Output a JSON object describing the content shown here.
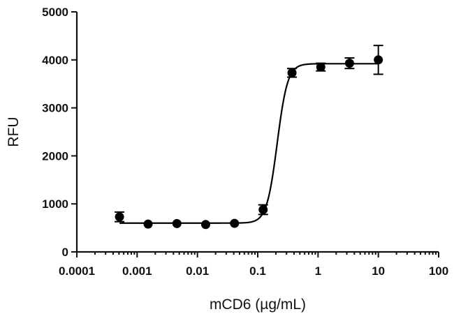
{
  "chart_data": {
    "type": "scatter",
    "title": "",
    "xlabel": "mCD6 (µg/mL)",
    "ylabel": "RFU",
    "x_scale": "log",
    "xlim": [
      0.0001,
      100
    ],
    "ylim": [
      0,
      5000
    ],
    "x_ticks": [
      0.0001,
      0.001,
      0.01,
      0.1,
      1,
      10,
      100
    ],
    "x_tick_labels": [
      "0.0001",
      "0.001",
      "0.01",
      "0.1",
      "1",
      "10",
      "100"
    ],
    "y_ticks": [
      0,
      1000,
      2000,
      3000,
      4000,
      5000
    ],
    "y_tick_labels": [
      "0",
      "1000",
      "2000",
      "3000",
      "4000",
      "5000"
    ],
    "grid": false,
    "legend": "none",
    "series": [
      {
        "points": [
          {
            "x": 0.00051,
            "y": 730,
            "err": 100
          },
          {
            "x": 0.00152,
            "y": 580,
            "err": 0
          },
          {
            "x": 0.00457,
            "y": 590,
            "err": 0
          },
          {
            "x": 0.0137,
            "y": 570,
            "err": 0
          },
          {
            "x": 0.0412,
            "y": 595,
            "err": 0
          },
          {
            "x": 0.123,
            "y": 880,
            "err": 100
          },
          {
            "x": 0.37,
            "y": 3730,
            "err": 90
          },
          {
            "x": 1.11,
            "y": 3850,
            "err": 80
          },
          {
            "x": 3.33,
            "y": 3930,
            "err": 110
          },
          {
            "x": 10.0,
            "y": 4000,
            "err": 300
          }
        ],
        "fit": {
          "model": "sigmoidal",
          "bottom": 600,
          "top": 3920,
          "ec50": 0.21,
          "hill": 5.0
        }
      }
    ],
    "color": "#000000"
  }
}
